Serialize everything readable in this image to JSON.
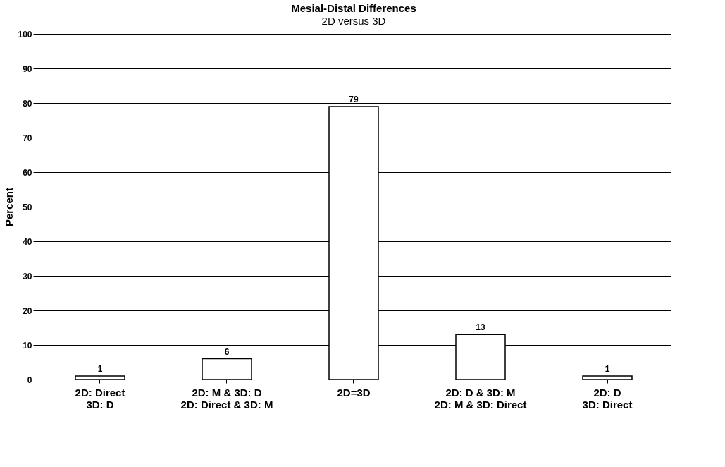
{
  "chart_data": {
    "type": "bar",
    "title": "Mesial-Distal Differences",
    "subtitle": "2D versus 3D",
    "ylabel": "Percent",
    "categories": [
      "2D: Direct\n3D: D",
      "2D: M & 3D: D\n2D: Direct & 3D: M",
      "2D=3D",
      "2D: D & 3D: M\n2D: M & 3D: Direct",
      "2D: D\n3D: Direct"
    ],
    "values": [
      1,
      6,
      79,
      13,
      1
    ],
    "color": "#ffffff",
    "ylim": [
      0,
      100
    ],
    "yticks": [
      0,
      10,
      20,
      30,
      40,
      50,
      60,
      70,
      80,
      90,
      100
    ],
    "grid": "y",
    "data_labels": true
  }
}
